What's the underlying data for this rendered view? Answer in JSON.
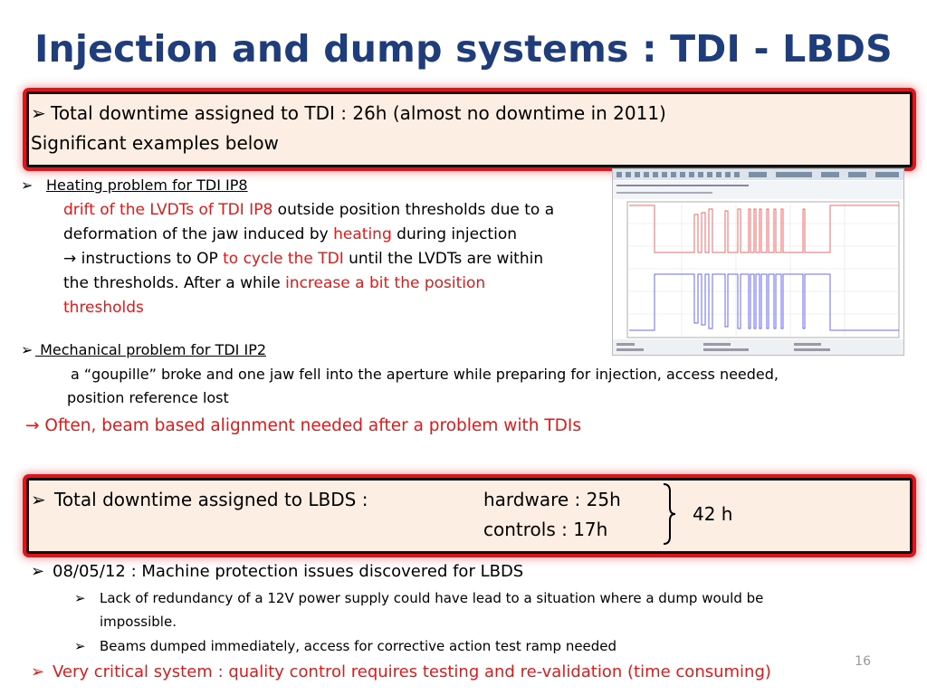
{
  "title": "Injection and dump systems : TDI - LBDS",
  "box1": {
    "bullet": "➢",
    "line1": "Total downtime assigned to TDI :  26h (almost no downtime in 2011)",
    "line2": "Significant examples below"
  },
  "heating": {
    "bullet": "➢",
    "heading": "Heating problem for TDI IP8",
    "l1_red": "drift of the LVDTs of TDI IP8",
    "l1_black": " outside position thresholds due to a",
    "l2_black": "deformation of the jaw induced by ",
    "l2_red": "heating",
    "l2_black2": " during injection",
    "l3_black": "→ instructions to OP ",
    "l3_red": "to cycle the TDI",
    "l3_black2": " until the LVDTs are within",
    "l4_black": "the thresholds. After a while ",
    "l4_red": "increase a bit the position",
    "l5_red": "thresholds"
  },
  "mechanical": {
    "bullet": "➢",
    "heading": " Mechanical problem for TDI IP2",
    "l1": "a “goupille” broke and one jaw fell into the aperture while preparing for injection, access needed,",
    "l2": "position reference lost"
  },
  "often": "→  Often, beam based alignment needed after a problem with TDIs",
  "box2": {
    "bullet": "➢",
    "label": "Total downtime assigned to LBDS :",
    "hardware": "hardware : 25h",
    "controls": "controls  : 17h",
    "total": "42 h"
  },
  "lbds_items": {
    "bullet": "➢",
    "main": "08/05/12 : Machine protection issues discovered for LBDS",
    "sub1_a": "Lack of redundancy of a 12V power supply could have lead to a situation where a dump would be",
    "sub1_b": "impossible.",
    "sub2": "Beams dumped immediately, access for corrective action test ramp needed",
    "critical": "Very critical system : quality control requires testing and re-validation (time consuming)"
  },
  "slide_number": "16",
  "colors": {
    "title": "#1f3d7a",
    "red": "#e01a1a",
    "box_bg": "#fdeee3",
    "box_border": "#e0151c"
  },
  "graph": {
    "type": "screenshot-plot",
    "icon": "timber-chart-screenshot"
  }
}
